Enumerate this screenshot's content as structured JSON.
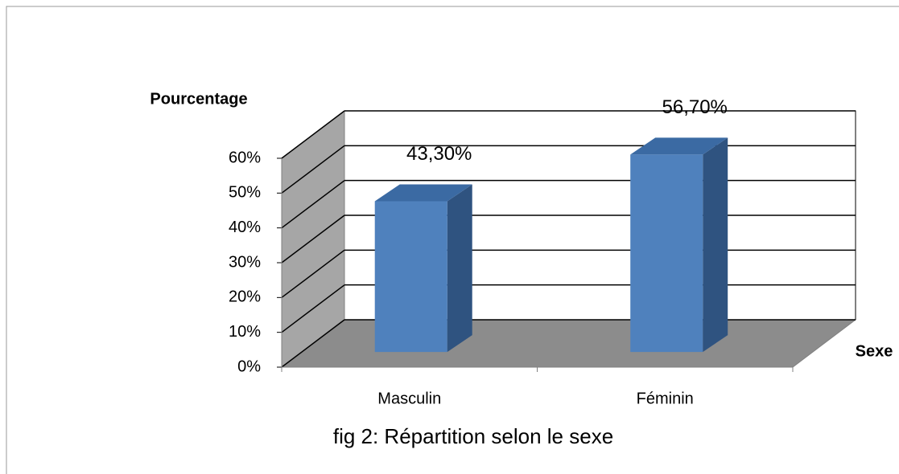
{
  "chart_data": {
    "type": "bar3d",
    "title": "fig 2: Répartition selon le sexe",
    "y_label": "Pourcentage",
    "x_label": "Sexe",
    "categories": [
      "Masculin",
      "Féminin"
    ],
    "values": [
      43.3,
      56.7
    ],
    "value_labels": [
      "43,30%",
      "56,70%"
    ],
    "color": "#4f81bd",
    "ylim": [
      0,
      60
    ],
    "yticks": [
      {
        "value": 0,
        "label": "0%"
      },
      {
        "value": 10,
        "label": "10%"
      },
      {
        "value": 20,
        "label": "20%"
      },
      {
        "value": 30,
        "label": "30%"
      },
      {
        "value": 40,
        "label": "40%"
      },
      {
        "value": 50,
        "label": "50%"
      },
      {
        "value": 60,
        "label": "60%"
      }
    ],
    "grid": true
  }
}
